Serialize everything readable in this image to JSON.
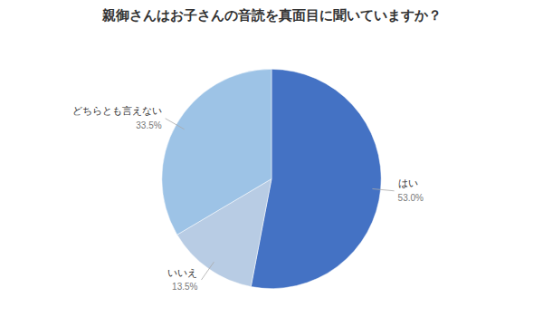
{
  "chart_data": {
    "type": "pie",
    "title": "親御さんはお子さんの音読を真面目に聞いていますか？",
    "categories": [
      "はい",
      "いいえ",
      "どちらとも言えない"
    ],
    "values": [
      53.0,
      13.5,
      33.5
    ],
    "value_labels": [
      "53.0%",
      "13.5%",
      "33.5%"
    ],
    "colors": [
      "#4472C4",
      "#B8CCE4",
      "#9DC3E6"
    ],
    "data_labels": true
  }
}
